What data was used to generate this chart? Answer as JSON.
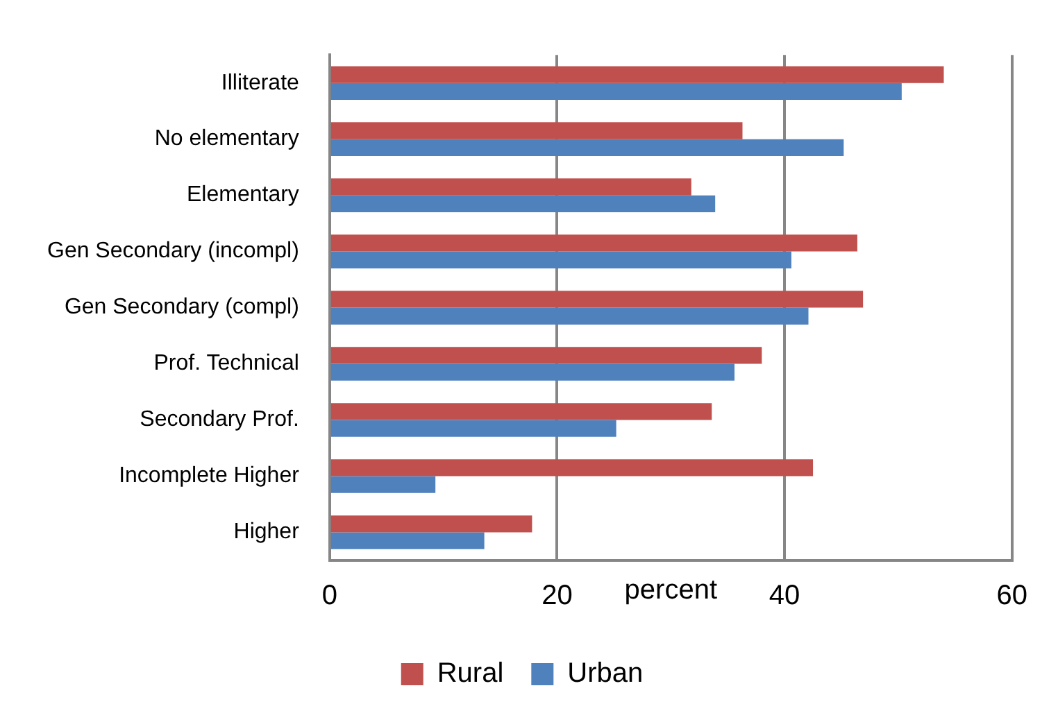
{
  "chart_data": {
    "type": "bar",
    "orientation": "horizontal",
    "xlabel": "percent",
    "categories": [
      "Illiterate",
      "No elementary",
      "Elementary",
      "Gen Secondary (incompl)",
      "Gen Secondary (compl)",
      "Prof. Technical",
      "Secondary Prof.",
      "Incomplete Higher",
      "Higher"
    ],
    "series": [
      {
        "name": "Rural",
        "color": "#c0504d",
        "values": [
          54.0,
          36.3,
          31.8,
          46.4,
          46.9,
          38.0,
          33.6,
          42.5,
          17.8
        ]
      },
      {
        "name": "Urban",
        "color": "#4f81bd",
        "values": [
          50.3,
          45.2,
          33.9,
          40.6,
          42.1,
          35.6,
          25.2,
          9.3,
          13.6
        ]
      }
    ],
    "xlim": [
      0,
      60
    ],
    "xticks": [
      0,
      20,
      40,
      60
    ],
    "grid": "x",
    "legend": "bottom"
  }
}
